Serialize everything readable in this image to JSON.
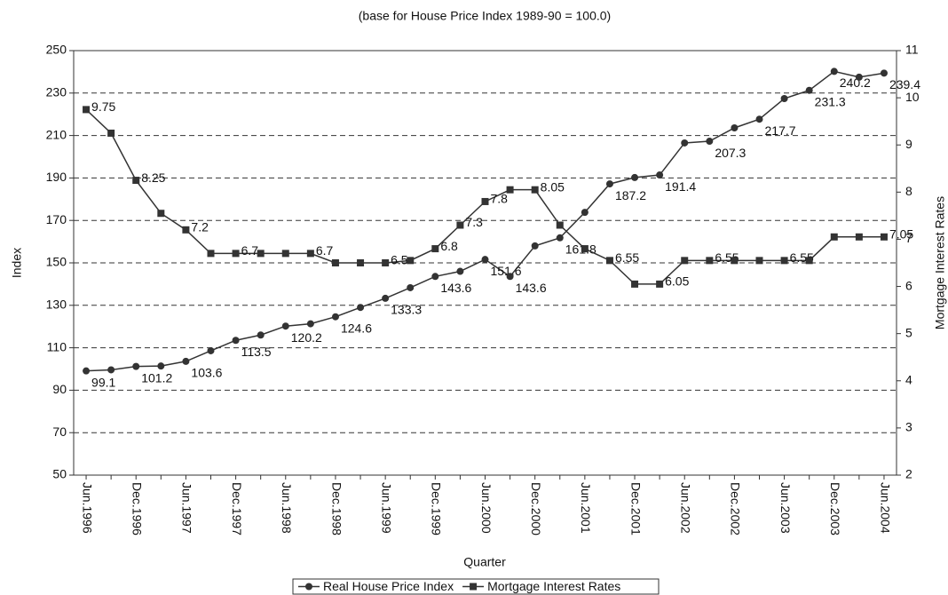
{
  "chart_data": {
    "type": "line",
    "title": "(base for House Price Index 1989-90 = 100.0)",
    "x_label": "Quarter",
    "y_label": "Index",
    "y2_label": "Mortgage Interest Rates",
    "categories": [
      "Jun.1996",
      null,
      "Dec.1996",
      null,
      "Jun.1997",
      null,
      "Dec.1997",
      null,
      "Jun.1998",
      null,
      "Dec.1998",
      null,
      "Jun.1999",
      null,
      "Dec.1999",
      null,
      "Jun.2000",
      null,
      "Dec.2000",
      null,
      "Jun.2001",
      null,
      "Dec.2001",
      null,
      "Jun.2002",
      null,
      "Dec.2002",
      null,
      "Jun.2003",
      null,
      "Dec.2003",
      null,
      "Jun.2004"
    ],
    "series": [
      {
        "name": "Real House Price Index",
        "color": "#333333",
        "marker": "circle",
        "values": [
          99.1,
          99.6,
          101.2,
          101.4,
          103.6,
          108.6,
          113.5,
          116,
          120.2,
          121.3,
          124.6,
          129,
          133.3,
          138.3,
          143.6,
          146,
          151.6,
          143.6,
          158,
          161.8,
          173.8,
          187.2,
          190.2,
          191.4,
          206.5,
          207.3,
          213.6,
          217.7,
          227.4,
          231.3,
          240.2,
          237.5,
          239.4
        ],
        "value_labels": [
          "99.1",
          null,
          "101.2",
          null,
          "103.6",
          null,
          "113.5",
          null,
          "120.2",
          null,
          "124.6",
          null,
          "133.3",
          null,
          "143.6",
          null,
          "151.6",
          "143.6",
          null,
          "161.8",
          null,
          "187.2",
          null,
          "191.4",
          null,
          "207.3",
          null,
          "217.7",
          null,
          "231.3",
          "240.2",
          null,
          "239.4"
        ]
      },
      {
        "name": "Mortgage Interest Rates",
        "color": "#333333",
        "marker": "square",
        "axis": "y2",
        "values": [
          9.75,
          9.25,
          8.25,
          7.55,
          7.2,
          6.7,
          6.7,
          6.7,
          6.7,
          6.7,
          6.5,
          6.5,
          6.5,
          6.55,
          6.8,
          7.3,
          7.8,
          8.05,
          8.05,
          7.3,
          6.8,
          6.55,
          6.05,
          6.05,
          6.55,
          6.55,
          6.55,
          6.55,
          6.55,
          6.55,
          7.05,
          7.05,
          7.05
        ],
        "value_labels": [
          "9.75",
          null,
          "8.25",
          null,
          "7.2",
          null,
          "6.7",
          null,
          null,
          "6.7",
          null,
          null,
          "6.5",
          null,
          "6.8",
          "7.3",
          "7.8",
          null,
          "8.05",
          null,
          null,
          "6.55",
          null,
          "6.05",
          null,
          "6.55",
          null,
          null,
          "6.55",
          null,
          null,
          null,
          "7.05"
        ]
      }
    ],
    "ylim": [
      50,
      250
    ],
    "yticks": [
      50,
      70,
      90,
      110,
      130,
      150,
      170,
      190,
      210,
      230,
      250
    ],
    "y2lim": [
      2,
      11
    ],
    "y2ticks": [
      2,
      3,
      4,
      5,
      6,
      7,
      8,
      9,
      10,
      11
    ],
    "grid": true,
    "legend": "bottom"
  }
}
